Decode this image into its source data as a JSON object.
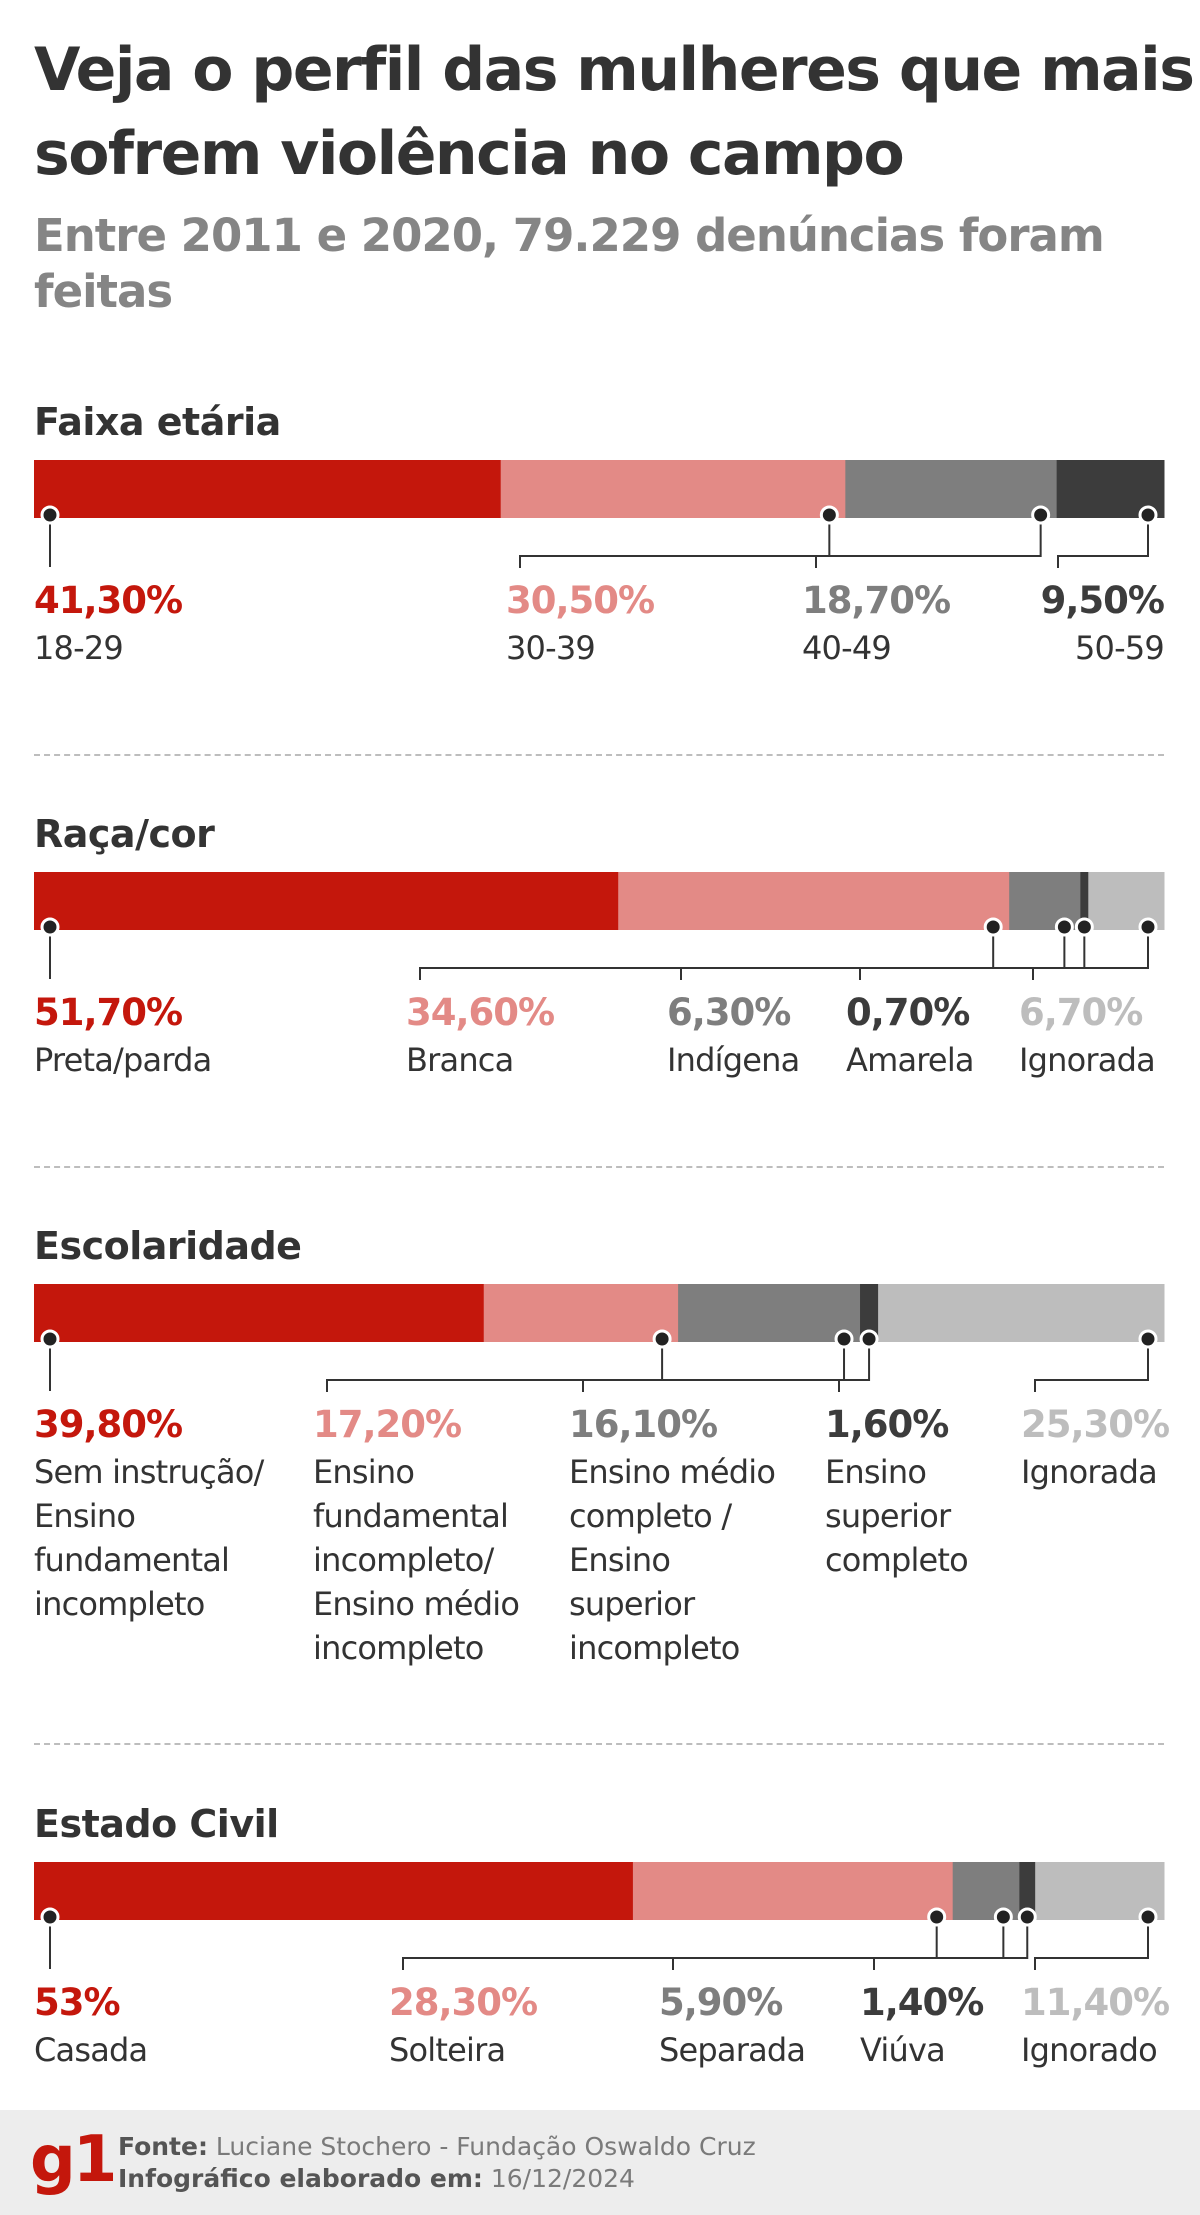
{
  "title": "Veja o perfil das mulheres que mais sofrem violência no campo",
  "subtitle": "Entre 2011 e 2020, 79.229 denúncias foram feitas",
  "colors": {
    "red": "#c4170c",
    "pink": "#e38a86",
    "gray": "#7e7e7e",
    "dark": "#3c3c3c",
    "light": "#bdbdbd",
    "text": "#333333"
  },
  "chart_data": [
    {
      "type": "bar",
      "stacked": true,
      "orientation": "horizontal",
      "title": "Faixa etária",
      "unit": "%",
      "categories": [
        "18-29",
        "30-39",
        "40-49",
        "50-59"
      ],
      "values": [
        41.3,
        30.5,
        18.7,
        9.5
      ],
      "value_labels": [
        "41,30%",
        "30,50%",
        "18,70%",
        "9,50%"
      ],
      "series_colors": [
        "#c4170c",
        "#e38a86",
        "#7e7e7e",
        "#3c3c3c"
      ]
    },
    {
      "type": "bar",
      "stacked": true,
      "orientation": "horizontal",
      "title": "Raça/cor",
      "unit": "%",
      "categories": [
        "Preta/parda",
        "Branca",
        "Indígena",
        "Amarela",
        "Ignorada"
      ],
      "values": [
        51.7,
        34.6,
        6.3,
        0.7,
        6.7
      ],
      "value_labels": [
        "51,70%",
        "34,60%",
        "6,30%",
        "0,70%",
        "6,70%"
      ],
      "series_colors": [
        "#c4170c",
        "#e38a86",
        "#7e7e7e",
        "#3c3c3c",
        "#bdbdbd"
      ]
    },
    {
      "type": "bar",
      "stacked": true,
      "orientation": "horizontal",
      "title": "Escolaridade",
      "unit": "%",
      "categories": [
        "Sem instrução/ Ensino fundamental incompleto",
        "Ensino fundamental incompleto/ Ensino médio incompleto",
        "Ensino médio completo / Ensino superior incompleto",
        "Ensino superior completo",
        "Ignorada"
      ],
      "category_lines": [
        [
          "Sem instrução/",
          "Ensino",
          "fundamental",
          "incompleto"
        ],
        [
          "Ensino",
          "fundamental",
          "incompleto/",
          "Ensino médio",
          "incompleto"
        ],
        [
          "Ensino médio",
          "completo /",
          "Ensino",
          "superior",
          "incompleto"
        ],
        [
          "Ensino",
          "superior",
          "completo"
        ],
        [
          "Ignorada"
        ]
      ],
      "values": [
        39.8,
        17.2,
        16.1,
        1.6,
        25.3
      ],
      "value_labels": [
        "39,80%",
        "17,20%",
        "16,10%",
        "1,60%",
        "25,30%"
      ],
      "series_colors": [
        "#c4170c",
        "#e38a86",
        "#7e7e7e",
        "#3c3c3c",
        "#bdbdbd"
      ]
    },
    {
      "type": "bar",
      "stacked": true,
      "orientation": "horizontal",
      "title": "Estado Civil",
      "unit": "%",
      "categories": [
        "Casada",
        "Solteira",
        "Separada",
        "Viúva",
        "Ignorado"
      ],
      "values": [
        53,
        28.3,
        5.9,
        1.4,
        11.4
      ],
      "value_labels": [
        "53%",
        "28,30%",
        "5,90%",
        "1,40%",
        "11,40%"
      ],
      "series_colors": [
        "#c4170c",
        "#e38a86",
        "#7e7e7e",
        "#3c3c3c",
        "#bdbdbd"
      ]
    }
  ],
  "footer": {
    "logo": "g1",
    "source_label": "Fonte:",
    "source_text": "Luciane Stochero - Fundação Oswaldo Cruz",
    "date_label": "Infográfico elaborado em:",
    "date_text": "16/12/2024"
  }
}
